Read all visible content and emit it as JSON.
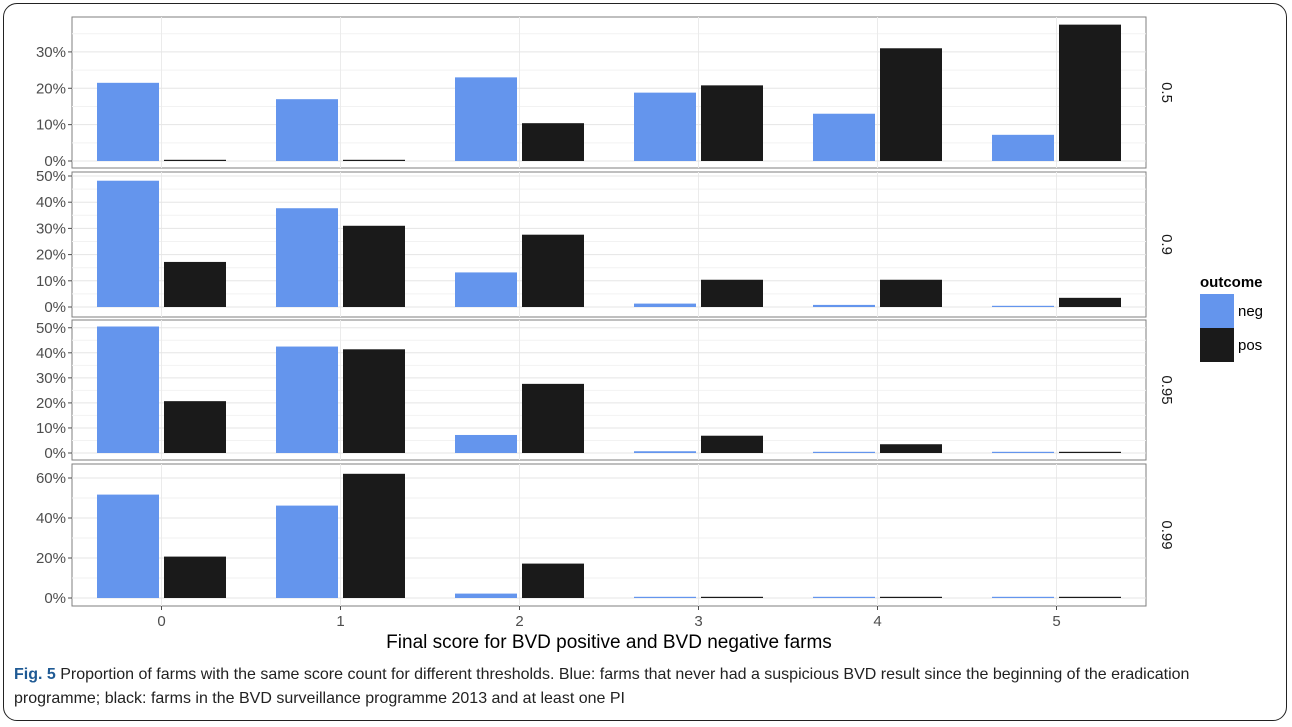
{
  "chart_data": {
    "type": "bar",
    "xlabel": "Final score for BVD positive and BVD negative farms",
    "categories": [
      "0",
      "1",
      "2",
      "3",
      "4",
      "5"
    ],
    "legend": {
      "title": "outcome",
      "position": "right",
      "entries": [
        {
          "name": "neg",
          "color": "#6495ED"
        },
        {
          "name": "pos",
          "color": "#1a1a1a"
        }
      ]
    },
    "grid": true,
    "panels": [
      {
        "strip": "0.5",
        "ylim": [
          0,
          0.385
        ],
        "yticks": [
          0,
          0.1,
          0.2,
          0.3
        ],
        "yticklabels": [
          "0%",
          "10%",
          "20%",
          "30%"
        ],
        "series": [
          {
            "name": "neg",
            "values": [
              0.215,
              0.17,
              0.23,
              0.188,
              0.13,
              0.072
            ]
          },
          {
            "name": "pos",
            "values": [
              0.003,
              0.003,
              0.104,
              0.208,
              0.31,
              0.375
            ]
          }
        ]
      },
      {
        "strip": "0.9",
        "ylim": [
          0,
          0.5
        ],
        "yticks": [
          0,
          0.1,
          0.2,
          0.3,
          0.4,
          0.5
        ],
        "yticklabels": [
          "0%",
          "10%",
          "20%",
          "30%",
          "40%",
          "50%"
        ],
        "series": [
          {
            "name": "neg",
            "values": [
              0.482,
              0.377,
              0.132,
              0.013,
              0.008,
              0.003
            ]
          },
          {
            "name": "pos",
            "values": [
              0.172,
              0.31,
              0.276,
              0.104,
              0.104,
              0.035
            ]
          }
        ]
      },
      {
        "strip": "0.95",
        "ylim": [
          0,
          0.515
        ],
        "yticks": [
          0,
          0.1,
          0.2,
          0.3,
          0.4,
          0.5
        ],
        "yticklabels": [
          "0%",
          "10%",
          "20%",
          "30%",
          "40%",
          "50%"
        ],
        "series": [
          {
            "name": "neg",
            "values": [
              0.505,
              0.425,
              0.072,
              0.007,
              0.004,
              0.002
            ]
          },
          {
            "name": "pos",
            "values": [
              0.207,
              0.414,
              0.276,
              0.069,
              0.035,
              0.002
            ]
          }
        ]
      },
      {
        "strip": "0.99",
        "ylim": [
          0,
          0.65
        ],
        "yticks": [
          0,
          0.2,
          0.4,
          0.6
        ],
        "yticklabels": [
          "0%",
          "20%",
          "40%",
          "60%"
        ],
        "series": [
          {
            "name": "neg",
            "values": [
              0.517,
              0.462,
              0.022,
              0.002,
              0.002,
              0.002
            ]
          },
          {
            "name": "pos",
            "values": [
              0.207,
              0.621,
              0.172,
              0.002,
              0.002,
              0.002
            ]
          }
        ]
      }
    ]
  },
  "caption": {
    "label": "Fig. 5",
    "text": " Proportion of farms with the same score count for different thresholds. Blue: farms that never had a suspicious BVD result since the beginning of the eradication programme; black: farms in the BVD surveillance programme 2013 and at least one PI"
  }
}
